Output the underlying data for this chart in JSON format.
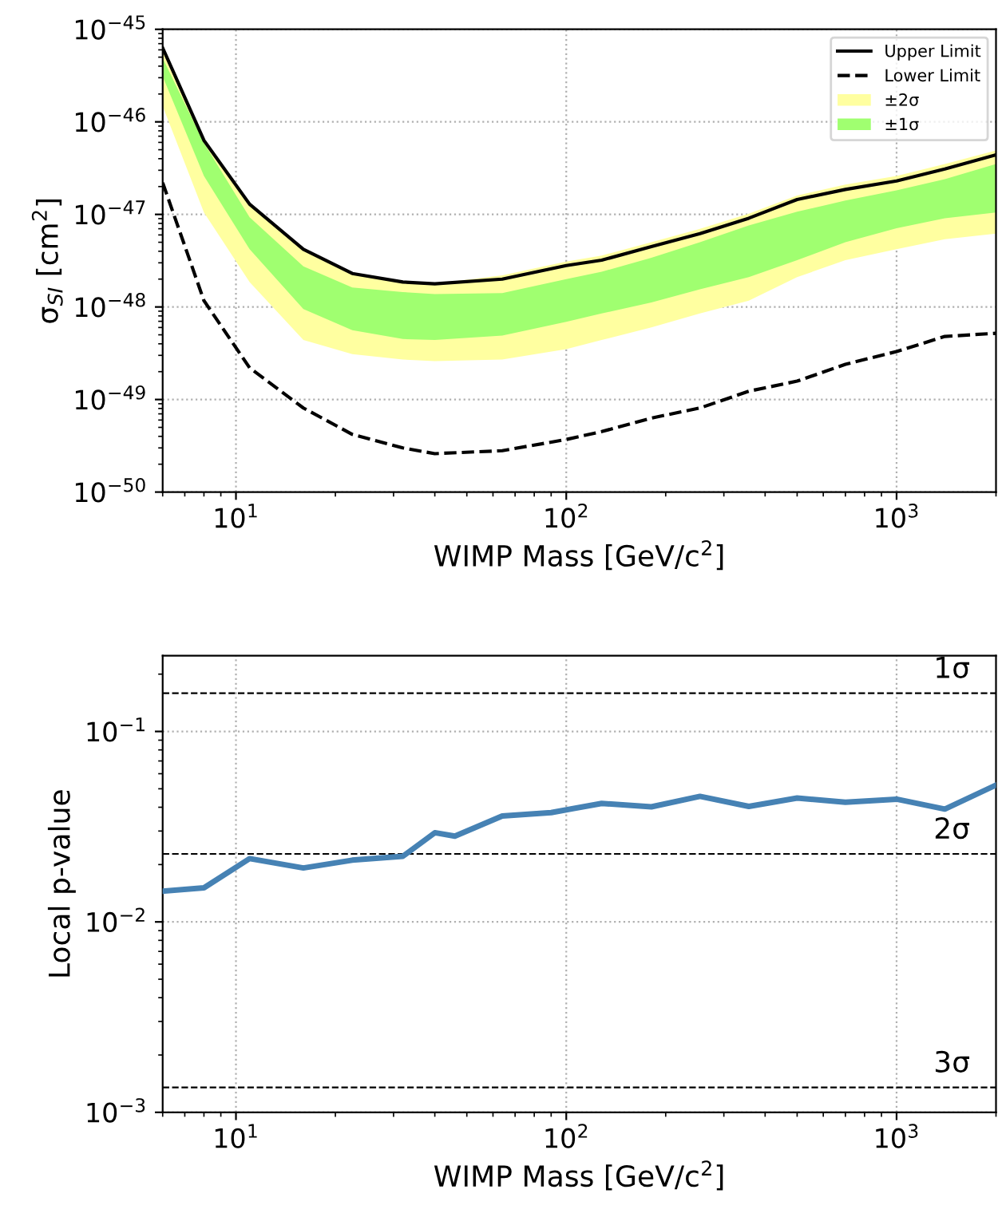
{
  "chart_data": [
    {
      "type": "line",
      "xlabel": "WIMP Mass [GeV/c$^{2}$]",
      "ylabel": "σ$_{SI}$ [cm$^{2}$]",
      "log": "xy",
      "grid": true,
      "legend": "top right",
      "x": [
        6,
        8,
        11,
        16,
        22.5,
        32,
        40,
        64,
        100,
        128,
        181,
        254,
        357,
        500,
        700,
        1000,
        1400,
        2000
      ],
      "xlim": [
        6,
        2000
      ],
      "xticks": [
        {
          "value": 10,
          "label": "10$^{1}$"
        },
        {
          "value": 100,
          "label": "10$^{2}$"
        },
        {
          "value": 1000,
          "label": "10$^{3}$"
        }
      ],
      "ylim": [
        1e-50,
        1e-45
      ],
      "yticks": [
        {
          "value": 1e-50,
          "label": "10$^{−50}$"
        },
        {
          "value": 1e-49,
          "label": "10$^{−49}$"
        },
        {
          "value": 1e-48,
          "label": "10$^{−48}$"
        },
        {
          "value": 1e-47,
          "label": "10$^{−47}$"
        },
        {
          "value": 1e-46,
          "label": "10$^{−46}$"
        },
        {
          "value": 1e-45,
          "label": "10$^{−45}$"
        }
      ],
      "series": [
        {
          "name": "Upper Limit",
          "type": "line",
          "color": "#000000",
          "line_style": "solid",
          "values": [
            6.3e-46,
            6.3e-47,
            1.29e-47,
            4.2e-48,
            2.3e-48,
            1.86e-48,
            1.78e-48,
            2e-48,
            2.8e-48,
            3.2e-48,
            4.5e-48,
            6.2e-48,
            9.1e-48,
            1.45e-47,
            1.86e-47,
            2.3e-47,
            3.1e-47,
            4.4e-47
          ]
        },
        {
          "name": "Lower Limit",
          "type": "line",
          "color": "#000000",
          "line_style": "dashed",
          "values": [
            2.2e-47,
            1.17e-48,
            2.2e-49,
            8.1e-50,
            4.2e-50,
            3e-50,
            2.6e-50,
            2.8e-50,
            3.7e-50,
            4.5e-50,
            6.3e-50,
            8.1e-50,
            1.23e-49,
            1.58e-49,
            2.4e-49,
            3.3e-49,
            4.8e-49,
            5.2e-49
          ]
        },
        {
          "name": "±2σ",
          "type": "area",
          "color": "#ffffa0",
          "values": [
            null,
            null,
            null,
            null,
            null,
            null,
            null,
            null,
            null,
            null,
            null,
            null,
            null,
            null,
            null,
            null,
            null,
            null
          ],
          "lower": [
            1.48e-46,
            1.05e-47,
            1.86e-48,
            4.4e-49,
            3.1e-49,
            2.7e-49,
            2.6e-49,
            2.7e-49,
            3.5e-49,
            4.4e-49,
            6e-49,
            8.5e-49,
            1.17e-48,
            2.1e-48,
            3.2e-48,
            4.2e-48,
            5.4e-48,
            6.2e-48
          ],
          "upper": [
            6.3e-46,
            6.3e-47,
            1.29e-47,
            4.2e-48,
            2.3e-48,
            1.86e-48,
            1.78e-48,
            2.2e-48,
            3.1e-48,
            3.6e-48,
            5e-48,
            7e-48,
            1.02e-47,
            1.6e-47,
            2.1e-47,
            2.6e-47,
            3.5e-47,
            4.9e-47
          ]
        },
        {
          "name": "±1σ",
          "type": "area",
          "color": "#a0ff70",
          "values": [
            null,
            null,
            null,
            null,
            null,
            null,
            null,
            null,
            null,
            null,
            null,
            null,
            null,
            null,
            null,
            null,
            null,
            null
          ],
          "lower": [
            3.1e-46,
            2.6e-47,
            4.2e-48,
            9.5e-49,
            5.6e-49,
            4.5e-49,
            4.4e-49,
            4.9e-49,
            6.9e-49,
            8.5e-49,
            1.12e-48,
            1.55e-48,
            2.1e-48,
            3.2e-48,
            5e-48,
            7.1e-48,
            9.1e-48,
            1.05e-47
          ],
          "upper": [
            4.9e-46,
            5.9e-47,
            9.3e-48,
            2.75e-48,
            1.62e-48,
            1.45e-48,
            1.38e-48,
            1.41e-48,
            2e-48,
            2.4e-48,
            3.4e-48,
            5e-48,
            7.6e-48,
            1.07e-47,
            1.41e-47,
            1.82e-47,
            2.4e-47,
            3.5e-47
          ]
        }
      ]
    },
    {
      "type": "line",
      "xlabel": "WIMP Mass [GeV/c$^{2}$]",
      "ylabel": "Local p-value",
      "log": "xy",
      "grid": true,
      "x": [
        6,
        8,
        11,
        16,
        22.5,
        32,
        40,
        46,
        64,
        90,
        128,
        181,
        254,
        357,
        500,
        700,
        1000,
        1400,
        2000
      ],
      "xlim": [
        6,
        2000
      ],
      "xticks": [
        {
          "value": 10,
          "label": "10$^{1}$"
        },
        {
          "value": 100,
          "label": "10$^{2}$"
        },
        {
          "value": 1000,
          "label": "10$^{3}$"
        }
      ],
      "ylim": [
        0.001,
        0.25
      ],
      "yticks": [
        {
          "value": 0.001,
          "label": "10$^{−3}$"
        },
        {
          "value": 0.01,
          "label": "10$^{−2}$"
        },
        {
          "value": 0.1,
          "label": "10$^{−1}$"
        }
      ],
      "series": [
        {
          "color": "#4682b4",
          "values": [
            0.0145,
            0.0151,
            0.0215,
            0.0192,
            0.0211,
            0.0221,
            0.0294,
            0.0282,
            0.036,
            0.0375,
            0.0419,
            0.0402,
            0.0456,
            0.0404,
            0.0447,
            0.0425,
            0.0441,
            0.0391,
            0.0523
          ]
        }
      ],
      "ref_lines": [
        {
          "axis": "y",
          "value": 0.1587,
          "label": "1σ",
          "color": "#000000",
          "line_style": "dashed"
        },
        {
          "axis": "y",
          "value": 0.02275,
          "label": "2σ",
          "color": "#000000",
          "line_style": "dashed"
        },
        {
          "axis": "y",
          "value": 0.00135,
          "label": "3σ",
          "color": "#000000",
          "line_style": "dashed"
        }
      ]
    }
  ]
}
